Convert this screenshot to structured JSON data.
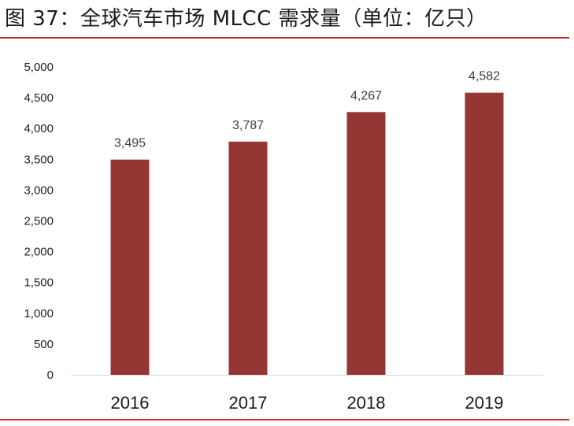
{
  "title": "图 37：全球汽车市场 MLCC 需求量（单位：亿只）",
  "colors": {
    "bar": "#943634",
    "accent_rule": "#c4322c"
  },
  "chart_data": {
    "type": "bar",
    "categories": [
      "2016",
      "2017",
      "2018",
      "2019"
    ],
    "values": [
      3495,
      3787,
      4267,
      4582
    ],
    "data_labels": [
      "3,495",
      "3,787",
      "4,267",
      "4,582"
    ],
    "y_ticks": [
      0,
      500,
      1000,
      1500,
      2000,
      2500,
      3000,
      3500,
      4000,
      4500,
      5000
    ],
    "y_tick_labels": [
      "0",
      "500",
      "1,000",
      "1,500",
      "2,000",
      "2,500",
      "3,000",
      "3,500",
      "4,000",
      "4,500",
      "5,000"
    ],
    "ylim": [
      0,
      5000
    ],
    "xlabel": "",
    "ylabel": "",
    "grid": false,
    "legend": "none"
  }
}
